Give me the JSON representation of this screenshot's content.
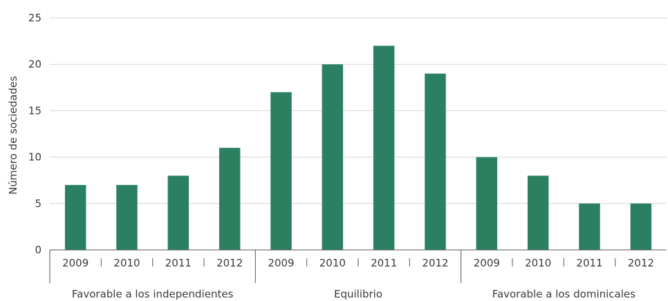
{
  "chart_data": {
    "type": "bar",
    "ylabel": "Número de sociedades",
    "ylim": [
      0,
      25
    ],
    "yticks": [
      0,
      5,
      10,
      15,
      20,
      25
    ],
    "grid": true,
    "groups": [
      {
        "label": "Favorable a los independientes",
        "categories": [
          "2009",
          "2010",
          "2011",
          "2012"
        ],
        "values": [
          7,
          7,
          8,
          11
        ]
      },
      {
        "label": "Equilibrio",
        "categories": [
          "2009",
          "2010",
          "2011",
          "2012"
        ],
        "values": [
          17,
          20,
          22,
          19
        ]
      },
      {
        "label": "Favorable a los dominicales",
        "categories": [
          "2009",
          "2010",
          "2011",
          "2012"
        ],
        "values": [
          10,
          8,
          5,
          5
        ]
      }
    ],
    "colors": {
      "bar": "#2a8060"
    }
  }
}
